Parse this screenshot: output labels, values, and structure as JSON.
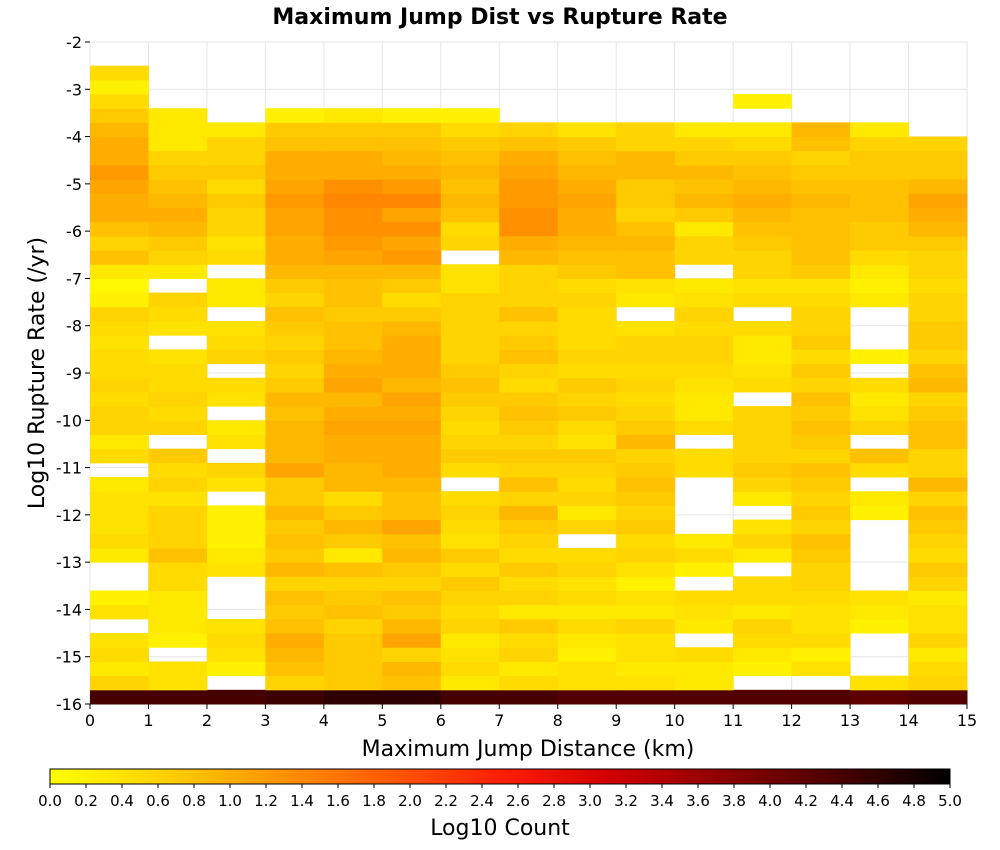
{
  "chart_data": {
    "type": "heatmap",
    "title": "Maximum Jump Dist vs Rupture Rate",
    "xlabel": "Maximum Jump Distance (km)",
    "ylabel": "Log10 Rupture Rate (/yr)",
    "xlim": [
      0,
      15
    ],
    "ylim": [
      -16,
      -2
    ],
    "x_bin_width": 1,
    "y_bin_height": 0.3,
    "x_ticks": [
      "0",
      "1",
      "2",
      "3",
      "4",
      "5",
      "6",
      "7",
      "8",
      "9",
      "10",
      "11",
      "12",
      "13",
      "14",
      "15"
    ],
    "y_ticks": [
      "-2",
      "-3",
      "-4",
      "-5",
      "-6",
      "-7",
      "-8",
      "-9",
      "-10",
      "-11",
      "-12",
      "-13",
      "-14",
      "-15",
      "-16"
    ],
    "colorbar": {
      "label": "Log10 Count",
      "range": [
        0,
        5
      ],
      "ticks": [
        "0.0",
        "0.2",
        "0.4",
        "0.6",
        "0.8",
        "1.0",
        "1.2",
        "1.4",
        "1.6",
        "1.8",
        "2.0",
        "2.2",
        "2.4",
        "2.6",
        "2.8",
        "3.0",
        "3.2",
        "3.4",
        "3.6",
        "3.8",
        "4.0",
        "4.2",
        "4.4",
        "4.6",
        "4.8",
        "5.0"
      ],
      "colors": [
        "#ffff00",
        "#ffd200",
        "#ff9600",
        "#ff5a00",
        "#ff1e00",
        "#d00000",
        "#8c0000",
        "#4a0000",
        "#000000"
      ]
    },
    "y_bin_starts": [
      -16,
      -15.7,
      -15.4,
      -15.1,
      -14.8,
      -14.5,
      -14.2,
      -13.9,
      -13.6,
      -13.3,
      -13,
      -12.7,
      -12.4,
      -12.1,
      -11.8,
      -11.5,
      -11.2,
      -10.9,
      -10.6,
      -10.3,
      -10,
      -9.7,
      -9.4,
      -9.1,
      -8.8,
      -8.5,
      -8.2,
      -7.9,
      -7.6,
      -7.3,
      -7,
      -6.7,
      -6.4,
      -6.1,
      -5.8,
      -5.5,
      -5.2,
      -4.9,
      -4.6,
      -4.3,
      -4,
      -3.7,
      -3.4,
      -3.1,
      -2.8
    ],
    "x_bin_starts": [
      0,
      1,
      2,
      3,
      4,
      5,
      6,
      7,
      8,
      9,
      10,
      11,
      12,
      13,
      14
    ],
    "z": [
      [
        4.4,
        4.4,
        4.4,
        4.5,
        4.6,
        4.6,
        4.4,
        4.4,
        4.3,
        4.3,
        4.3,
        4.3,
        4.3,
        4.2,
        4.3
      ],
      [
        0.6,
        0.4,
        null,
        0.6,
        0.7,
        0.8,
        0.3,
        0.5,
        0.4,
        0.4,
        0.3,
        null,
        null,
        0.4,
        0.6
      ],
      [
        0.3,
        0.4,
        0.2,
        0.8,
        0.7,
        0.9,
        0.5,
        0.3,
        0.4,
        0.3,
        0.3,
        0.2,
        0.4,
        null,
        0.5
      ],
      [
        0.5,
        null,
        0.4,
        0.9,
        0.7,
        0.6,
        0.4,
        0.6,
        0.2,
        0.4,
        0.5,
        0.3,
        0.2,
        null,
        0.3
      ],
      [
        0.4,
        0.2,
        0.5,
        1.0,
        0.7,
        1.1,
        0.3,
        0.5,
        0.3,
        0.4,
        null,
        0.5,
        0.5,
        null,
        0.6
      ],
      [
        null,
        0.3,
        0.4,
        0.8,
        0.6,
        0.9,
        0.6,
        0.7,
        0.5,
        0.6,
        0.3,
        0.6,
        0.4,
        0.2,
        0.4
      ],
      [
        0.4,
        0.3,
        null,
        0.7,
        0.8,
        0.7,
        0.5,
        0.3,
        0.3,
        0.3,
        0.4,
        0.3,
        0.4,
        0.3,
        0.4
      ],
      [
        0.2,
        0.3,
        null,
        0.8,
        0.7,
        0.8,
        0.6,
        0.6,
        0.5,
        0.4,
        0.5,
        0.5,
        0.5,
        0.4,
        0.3
      ],
      [
        null,
        0.5,
        null,
        0.6,
        0.6,
        0.6,
        0.7,
        0.5,
        0.4,
        0.2,
        null,
        0.5,
        0.6,
        null,
        0.6
      ],
      [
        null,
        0.5,
        0.4,
        0.9,
        0.8,
        0.7,
        0.5,
        0.7,
        0.6,
        0.4,
        0.2,
        null,
        0.6,
        null,
        0.7
      ],
      [
        0.3,
        0.8,
        0.3,
        0.7,
        0.3,
        0.9,
        0.7,
        0.5,
        0.5,
        0.6,
        0.5,
        0.3,
        0.7,
        null,
        0.5
      ],
      [
        0.5,
        0.6,
        0.2,
        0.8,
        0.7,
        0.8,
        0.4,
        0.6,
        null,
        0.5,
        0.3,
        0.6,
        0.8,
        null,
        0.6
      ],
      [
        0.4,
        0.6,
        0.2,
        0.7,
        0.9,
        1.1,
        0.5,
        0.7,
        0.6,
        0.7,
        null,
        0.4,
        0.6,
        null,
        0.7
      ],
      [
        0.4,
        0.6,
        0.2,
        0.9,
        0.7,
        0.8,
        0.6,
        0.9,
        0.3,
        0.6,
        null,
        null,
        0.7,
        0.2,
        0.8
      ],
      [
        0.4,
        0.4,
        null,
        0.7,
        0.5,
        0.8,
        0.5,
        0.6,
        0.6,
        0.7,
        null,
        0.3,
        0.6,
        0.3,
        0.6
      ],
      [
        0.3,
        0.6,
        0.4,
        0.7,
        0.9,
        0.9,
        null,
        0.8,
        0.5,
        0.8,
        null,
        0.6,
        0.7,
        null,
        0.9
      ],
      [
        null,
        0.5,
        0.6,
        1.1,
        0.9,
        1.0,
        0.5,
        0.6,
        0.6,
        0.7,
        0.5,
        0.7,
        0.8,
        0.5,
        0.6
      ],
      [
        0.5,
        0.7,
        null,
        0.9,
        1.0,
        1.0,
        0.7,
        0.7,
        0.7,
        0.6,
        0.5,
        0.6,
        0.6,
        0.8,
        0.6
      ],
      [
        0.3,
        null,
        0.4,
        0.9,
        1.0,
        1.0,
        0.6,
        0.6,
        0.4,
        0.9,
        null,
        0.6,
        0.7,
        null,
        0.8
      ],
      [
        0.6,
        0.6,
        0.3,
        0.9,
        1.1,
        1.1,
        0.5,
        0.7,
        0.5,
        0.7,
        0.5,
        0.6,
        0.8,
        0.6,
        0.8
      ],
      [
        0.6,
        0.5,
        null,
        0.8,
        1.0,
        1.0,
        0.6,
        0.8,
        0.7,
        0.6,
        0.3,
        0.6,
        0.7,
        0.4,
        0.7
      ],
      [
        0.5,
        0.6,
        0.4,
        0.9,
        0.9,
        1.1,
        0.7,
        0.7,
        0.6,
        0.5,
        0.3,
        null,
        0.8,
        0.3,
        0.6
      ],
      [
        0.6,
        0.5,
        0.5,
        0.7,
        1.1,
        0.9,
        0.8,
        0.5,
        0.7,
        0.6,
        0.4,
        0.5,
        0.6,
        0.5,
        0.9
      ],
      [
        0.5,
        0.5,
        null,
        0.6,
        1.0,
        1.0,
        0.7,
        0.6,
        0.5,
        0.5,
        0.5,
        0.4,
        0.7,
        null,
        0.8
      ],
      [
        0.5,
        0.4,
        0.6,
        0.7,
        0.9,
        1.0,
        0.6,
        0.8,
        0.6,
        0.6,
        0.6,
        0.3,
        0.5,
        0.2,
        0.6
      ],
      [
        0.4,
        null,
        0.5,
        0.6,
        0.8,
        1.0,
        0.6,
        0.7,
        0.5,
        0.6,
        0.6,
        0.3,
        0.7,
        null,
        0.7
      ],
      [
        0.5,
        0.4,
        0.4,
        0.7,
        0.8,
        0.9,
        0.6,
        0.6,
        0.5,
        0.4,
        0.5,
        0.5,
        0.6,
        null,
        0.7
      ],
      [
        0.6,
        0.5,
        null,
        0.8,
        0.7,
        0.7,
        0.6,
        0.8,
        0.5,
        null,
        0.6,
        null,
        0.6,
        null,
        0.6
      ],
      [
        0.2,
        0.6,
        0.3,
        0.6,
        0.8,
        0.5,
        0.6,
        0.6,
        0.6,
        0.3,
        0.4,
        0.5,
        0.5,
        0.3,
        0.6
      ],
      [
        0.1,
        null,
        0.3,
        0.7,
        0.8,
        0.7,
        0.4,
        0.6,
        0.5,
        0.4,
        0.3,
        0.4,
        0.4,
        0.2,
        0.5
      ],
      [
        0.3,
        0.3,
        null,
        0.9,
        0.9,
        0.9,
        0.4,
        0.6,
        0.7,
        0.8,
        null,
        0.6,
        0.7,
        0.3,
        0.6
      ],
      [
        0.8,
        0.6,
        0.5,
        1.0,
        1.1,
        1.2,
        null,
        0.9,
        0.8,
        0.8,
        0.6,
        0.6,
        0.8,
        0.5,
        0.6
      ],
      [
        0.6,
        0.7,
        0.4,
        1.0,
        1.2,
        1.1,
        0.6,
        1.0,
        0.9,
        0.9,
        0.6,
        0.7,
        0.8,
        0.7,
        0.7
      ],
      [
        0.8,
        0.9,
        0.6,
        1.1,
        1.3,
        1.3,
        0.5,
        1.3,
        1.0,
        0.8,
        0.3,
        0.8,
        0.8,
        0.7,
        0.9
      ],
      [
        1.0,
        1.0,
        0.6,
        1.1,
        1.3,
        1.1,
        0.8,
        1.3,
        1.0,
        0.6,
        0.7,
        0.9,
        0.8,
        0.8,
        1.0
      ],
      [
        1.0,
        0.9,
        0.7,
        1.2,
        1.4,
        1.4,
        0.9,
        1.2,
        1.1,
        0.7,
        0.9,
        1.0,
        0.9,
        0.8,
        1.1
      ],
      [
        1.1,
        0.8,
        0.5,
        1.1,
        1.3,
        1.2,
        0.8,
        1.2,
        1.0,
        0.7,
        0.8,
        0.9,
        0.8,
        0.8,
        0.9
      ],
      [
        1.2,
        0.7,
        0.7,
        1.0,
        1.0,
        1.0,
        0.9,
        1.1,
        0.9,
        0.9,
        0.9,
        0.8,
        0.7,
        0.7,
        0.7
      ],
      [
        1.0,
        0.6,
        0.6,
        1.0,
        1.0,
        0.9,
        0.8,
        1.0,
        0.8,
        0.9,
        0.7,
        0.7,
        0.6,
        0.7,
        0.7
      ],
      [
        1.0,
        0.3,
        0.6,
        0.8,
        0.8,
        0.8,
        0.7,
        0.8,
        0.7,
        0.6,
        0.6,
        0.5,
        0.8,
        0.6,
        0.6
      ],
      [
        0.9,
        0.3,
        0.3,
        0.7,
        0.7,
        0.7,
        0.5,
        0.6,
        0.4,
        0.6,
        0.3,
        0.3,
        0.9,
        0.3,
        null
      ],
      [
        0.7,
        0.3,
        null,
        0.2,
        0.3,
        0.2,
        0.2,
        null,
        null,
        null,
        null,
        null,
        null,
        null,
        null
      ],
      [
        0.5,
        null,
        null,
        null,
        null,
        null,
        null,
        null,
        null,
        null,
        null,
        0.2,
        null,
        null,
        null
      ],
      [
        0.2,
        null,
        null,
        null,
        null,
        null,
        null,
        null,
        null,
        null,
        null,
        null,
        null,
        null,
        null
      ],
      [
        0.5,
        null,
        null,
        null,
        null,
        null,
        null,
        null,
        null,
        null,
        null,
        null,
        null,
        null,
        null
      ]
    ]
  }
}
